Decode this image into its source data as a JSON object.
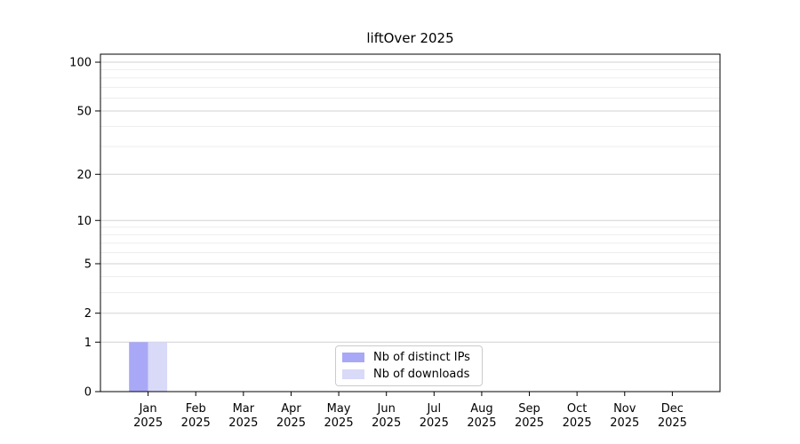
{
  "figure": {
    "title": "liftOver 2025"
  },
  "chart_data": {
    "type": "bar",
    "title": "liftOver 2025",
    "categories": [
      "Jan 2025",
      "Feb 2025",
      "Mar 2025",
      "Apr 2025",
      "May 2025",
      "Jun 2025",
      "Jul 2025",
      "Aug 2025",
      "Sep 2025",
      "Oct 2025",
      "Nov 2025",
      "Dec 2025"
    ],
    "series": [
      {
        "name": "Nb of distinct IPs",
        "color": "#a8a8f6",
        "values": [
          1,
          0,
          0,
          0,
          0,
          0,
          0,
          0,
          0,
          0,
          0,
          0
        ]
      },
      {
        "name": "Nb of downloads",
        "color": "#d9d9f8",
        "values": [
          1,
          0,
          0,
          0,
          0,
          0,
          0,
          0,
          0,
          0,
          0,
          0
        ]
      }
    ],
    "xlabel": "",
    "ylabel": "",
    "y_scale": "log10(value+1)",
    "ylim": [
      0,
      112
    ],
    "yticks_major": [
      0,
      1,
      2,
      5,
      10,
      20,
      50,
      100
    ],
    "yticks_minor": [
      3,
      4,
      6,
      7,
      8,
      9,
      30,
      40,
      60,
      70,
      80,
      90
    ],
    "grid": "horizontal major and minor",
    "legend_position": "lower center inside plot"
  },
  "colors": {
    "axis": "#000000",
    "tick_text": "#000000",
    "grid_major": "#d2d2d2",
    "grid_minor": "#ededed",
    "background": "#ffffff"
  }
}
